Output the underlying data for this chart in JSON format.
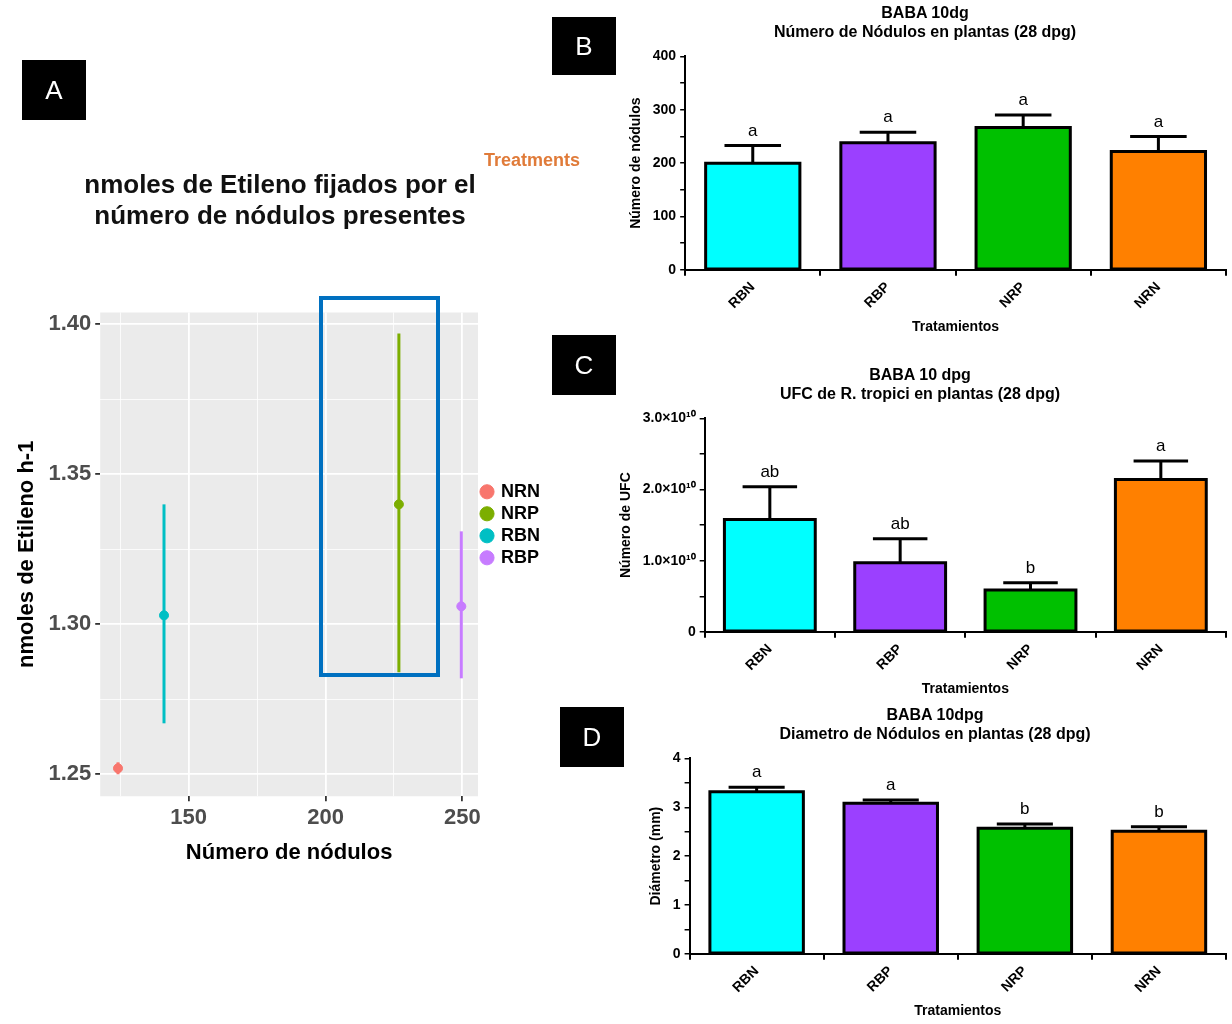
{
  "chart_data": [
    {
      "type": "scatter",
      "title": "nmoles de Etileno fijados por el\nnúmero de nódulos presentes",
      "xlabel": "Número de nódulos",
      "ylabel": "nmoles de Etileno h-1",
      "legend_title": "Treatments",
      "legend": "right",
      "grid": true,
      "marker": "circle",
      "annotations": [
        "A"
      ],
      "xlim": [
        117.7,
        255.7
      ],
      "xticks": [
        {
          "value": 125,
          "label": null
        },
        150,
        {
          "value": 175,
          "label": null
        },
        200,
        {
          "value": 225,
          "label": null
        },
        250
      ],
      "ylim": [
        1.2427,
        1.404
      ],
      "yticks": [
        1.25,
        {
          "value": 1.275,
          "label": null
        },
        {
          "value": 1.3,
          "label": "1.30"
        },
        {
          "value": 1.325,
          "label": null
        },
        1.35,
        {
          "value": 1.375,
          "label": null
        },
        {
          "value": 1.4,
          "label": "1.40"
        }
      ],
      "series": [
        {
          "name": "NRN",
          "color": "#f8766d",
          "x": [
            124.2
          ],
          "values": [
            1.252
          ],
          "errors": [
            [
              1.25,
              1.254
            ]
          ]
        },
        {
          "name": "NRP",
          "color": "#7cae00",
          "x": [
            226.8
          ],
          "values": [
            1.34
          ],
          "errors": [
            [
              1.284,
              1.397
            ]
          ]
        },
        {
          "name": "RBN",
          "color": "#00bfc4",
          "x": [
            141
          ],
          "values": [
            1.303
          ],
          "errors": [
            [
              1.267,
              1.34
            ]
          ]
        },
        {
          "name": "RBP",
          "color": "#c77cff",
          "x": [
            249.6
          ],
          "values": [
            1.306
          ],
          "errors": [
            [
              1.282,
              1.331
            ]
          ]
        }
      ]
    },
    {
      "type": "bar",
      "title": "BABA 10dg\nNúmero de Nódulos en plantas (28 dpg)",
      "xlabel": "Tratamientos",
      "ylabel": "Número de nódulos",
      "categories": [
        "RBN",
        "RBP",
        "NRP",
        "NRN"
      ],
      "values": [
        200,
        238,
        267,
        222
      ],
      "errors": [
        33,
        20,
        23,
        28
      ],
      "colors": [
        "#00ffff",
        "#9b40ff",
        "#00c000",
        "#ff8000"
      ],
      "ylim": [
        0,
        400
      ],
      "yticks": [
        0,
        {
          "value": 50,
          "label": null
        },
        100,
        {
          "value": 150,
          "label": null
        },
        200,
        {
          "value": 250,
          "label": null
        },
        300,
        {
          "value": 350,
          "label": null
        },
        400
      ],
      "annotations": [
        "B",
        "a",
        "a",
        "a",
        "a"
      ]
    },
    {
      "type": "bar",
      "title": "BABA 10 dpg\nUFC de R. tropici en plantas (28 dpg)",
      "xlabel": "Tratamientos",
      "ylabel": "Número de UFC",
      "categories": [
        "RBN",
        "RBP",
        "NRP",
        "NRN"
      ],
      "values": [
        15800000000.0,
        9700000000.0,
        5900000000.0,
        21400000000.0
      ],
      "errors": [
        4600000000.0,
        3400000000.0,
        1000000000.0,
        2600000000.0
      ],
      "colors": [
        "#00ffff",
        "#9b40ff",
        "#00c000",
        "#ff8000"
      ],
      "ylim": [
        0,
        30000000000.0
      ],
      "yticks": [
        0,
        {
          "value": 5000000000.0,
          "label": null
        },
        {
          "value": 10000000000.0,
          "label": "1.0×10¹⁰"
        },
        {
          "value": 15000000000.0,
          "label": null
        },
        {
          "value": 20000000000.0,
          "label": "2.0×10¹⁰"
        },
        {
          "value": 25000000000.0,
          "label": null
        },
        {
          "value": 30000000000.0,
          "label": "3.0×10¹⁰"
        }
      ],
      "annotations": [
        "C",
        "ab",
        "ab",
        "b",
        "a"
      ]
    },
    {
      "type": "bar",
      "title": "BABA 10dpg\nDiametro de Nódulos en plantas (28 dpg)",
      "xlabel": "Tratamientos",
      "ylabel": "Diámetro (mm)",
      "categories": [
        "RBN",
        "RBP",
        "NRP",
        "NRN"
      ],
      "values": [
        3.32,
        3.08,
        2.57,
        2.51
      ],
      "errors": [
        0.09,
        0.07,
        0.09,
        0.09
      ],
      "colors": [
        "#00ffff",
        "#9b40ff",
        "#00c000",
        "#ff8000"
      ],
      "ylim": [
        0,
        4
      ],
      "yticks": [
        0,
        {
          "value": 0.5,
          "label": null
        },
        1,
        {
          "value": 1.5,
          "label": null
        },
        2,
        {
          "value": 2.5,
          "label": null
        },
        3,
        {
          "value": 3.5,
          "label": null
        },
        4
      ],
      "annotations": [
        "D",
        "a",
        "a",
        "b",
        "b"
      ]
    }
  ]
}
